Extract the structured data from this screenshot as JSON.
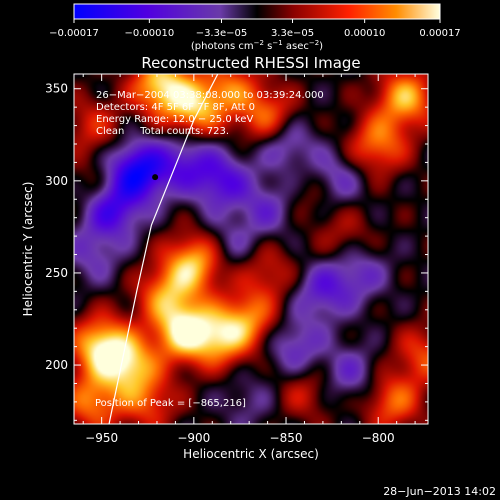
{
  "chart_data": {
    "type": "heatmap",
    "title": "Reconstructed RHESSI Image",
    "xlabel": "Heliocentric X (arcsec)",
    "ylabel": "Heliocentric Y (arcsec)",
    "xlim": [
      -965,
      -773
    ],
    "ylim": [
      168,
      358
    ],
    "x_ticks": [
      -950,
      -900,
      -850,
      -800
    ],
    "x_tick_labels": [
      "−950",
      "−900",
      "−850",
      "−800"
    ],
    "y_ticks": [
      200,
      250,
      300,
      350
    ],
    "y_tick_labels": [
      "200",
      "250",
      "300",
      "350"
    ],
    "colorbar": {
      "range": [
        -0.00017,
        0.00017
      ],
      "ticks": [
        -0.00017,
        -0.0001,
        -3.3e-05,
        3.3e-05,
        0.0001,
        0.00017
      ],
      "tick_labels": [
        "−0.00017",
        "−0.00010",
        "−3.3e−05",
        "3.3e−05",
        "0.00010",
        "0.00017"
      ],
      "unit_label_parts": [
        "(photons cm",
        "−2",
        " s",
        "−1",
        " asec",
        "−2",
        ")"
      ]
    },
    "annotations": [
      "26−Mar−2004 03:38:08.000 to 03:39:24.000",
      "Detectors: 4F 5F 6F 7F 8F, Att 0",
      "Energy Range: 12.0 − 25.0 keV",
      "Clean     Total counts: 723."
    ],
    "peak_label": "Position of Peak = [−865,216]",
    "peak": [
      -865,
      216
    ],
    "limb_line": [
      [
        -946,
        168
      ],
      [
        -931,
        240
      ],
      [
        -923,
        276
      ],
      [
        -900,
        333
      ],
      [
        -887,
        358
      ]
    ],
    "blobs": [
      {
        "x": -950,
        "y": 210,
        "v": 0.9
      },
      {
        "x": -935,
        "y": 200,
        "v": 0.75
      },
      {
        "x": -905,
        "y": 218,
        "v": 0.95
      },
      {
        "x": -900,
        "y": 255,
        "v": 0.8
      },
      {
        "x": -915,
        "y": 238,
        "v": 0.6
      },
      {
        "x": -885,
        "y": 215,
        "v": 0.7
      },
      {
        "x": -870,
        "y": 225,
        "v": 0.55
      },
      {
        "x": -955,
        "y": 180,
        "v": 0.6
      },
      {
        "x": -925,
        "y": 180,
        "v": 0.45
      },
      {
        "x": -900,
        "y": 340,
        "v": 0.75
      },
      {
        "x": -918,
        "y": 352,
        "v": 0.85
      },
      {
        "x": -880,
        "y": 350,
        "v": 0.5
      },
      {
        "x": -860,
        "y": 335,
        "v": 0.55
      },
      {
        "x": -785,
        "y": 345,
        "v": 0.75
      },
      {
        "x": -800,
        "y": 320,
        "v": 0.6
      },
      {
        "x": -792,
        "y": 180,
        "v": 0.55
      },
      {
        "x": -775,
        "y": 205,
        "v": 0.45
      },
      {
        "x": -835,
        "y": 295,
        "v": 0.3
      },
      {
        "x": -860,
        "y": 250,
        "v": 0.35
      },
      {
        "x": -955,
        "y": 330,
        "v": 0.35
      },
      {
        "x": -953,
        "y": 295,
        "v": 0.25
      },
      {
        "x": -818,
        "y": 270,
        "v": 0.25
      },
      {
        "x": -840,
        "y": 185,
        "v": 0.3
      },
      {
        "x": -930,
        "y": 305,
        "v": -0.9
      },
      {
        "x": -945,
        "y": 285,
        "v": -0.7
      },
      {
        "x": -885,
        "y": 300,
        "v": -0.55
      },
      {
        "x": -905,
        "y": 310,
        "v": -0.45
      },
      {
        "x": -850,
        "y": 320,
        "v": -0.4
      },
      {
        "x": -825,
        "y": 300,
        "v": -0.45
      },
      {
        "x": -860,
        "y": 285,
        "v": -0.35
      },
      {
        "x": -830,
        "y": 240,
        "v": -0.45
      },
      {
        "x": -810,
        "y": 250,
        "v": -0.35
      },
      {
        "x": -845,
        "y": 210,
        "v": -0.4
      },
      {
        "x": -815,
        "y": 195,
        "v": -0.35
      },
      {
        "x": -880,
        "y": 265,
        "v": -0.25
      },
      {
        "x": -955,
        "y": 260,
        "v": -0.3
      },
      {
        "x": -870,
        "y": 180,
        "v": -0.2
      }
    ]
  },
  "footer": {
    "timestamp": "28−Jun−2013 14:02"
  },
  "colors": {
    "background": "#000000",
    "axis": "#ffffff",
    "text": "#ffffff"
  }
}
